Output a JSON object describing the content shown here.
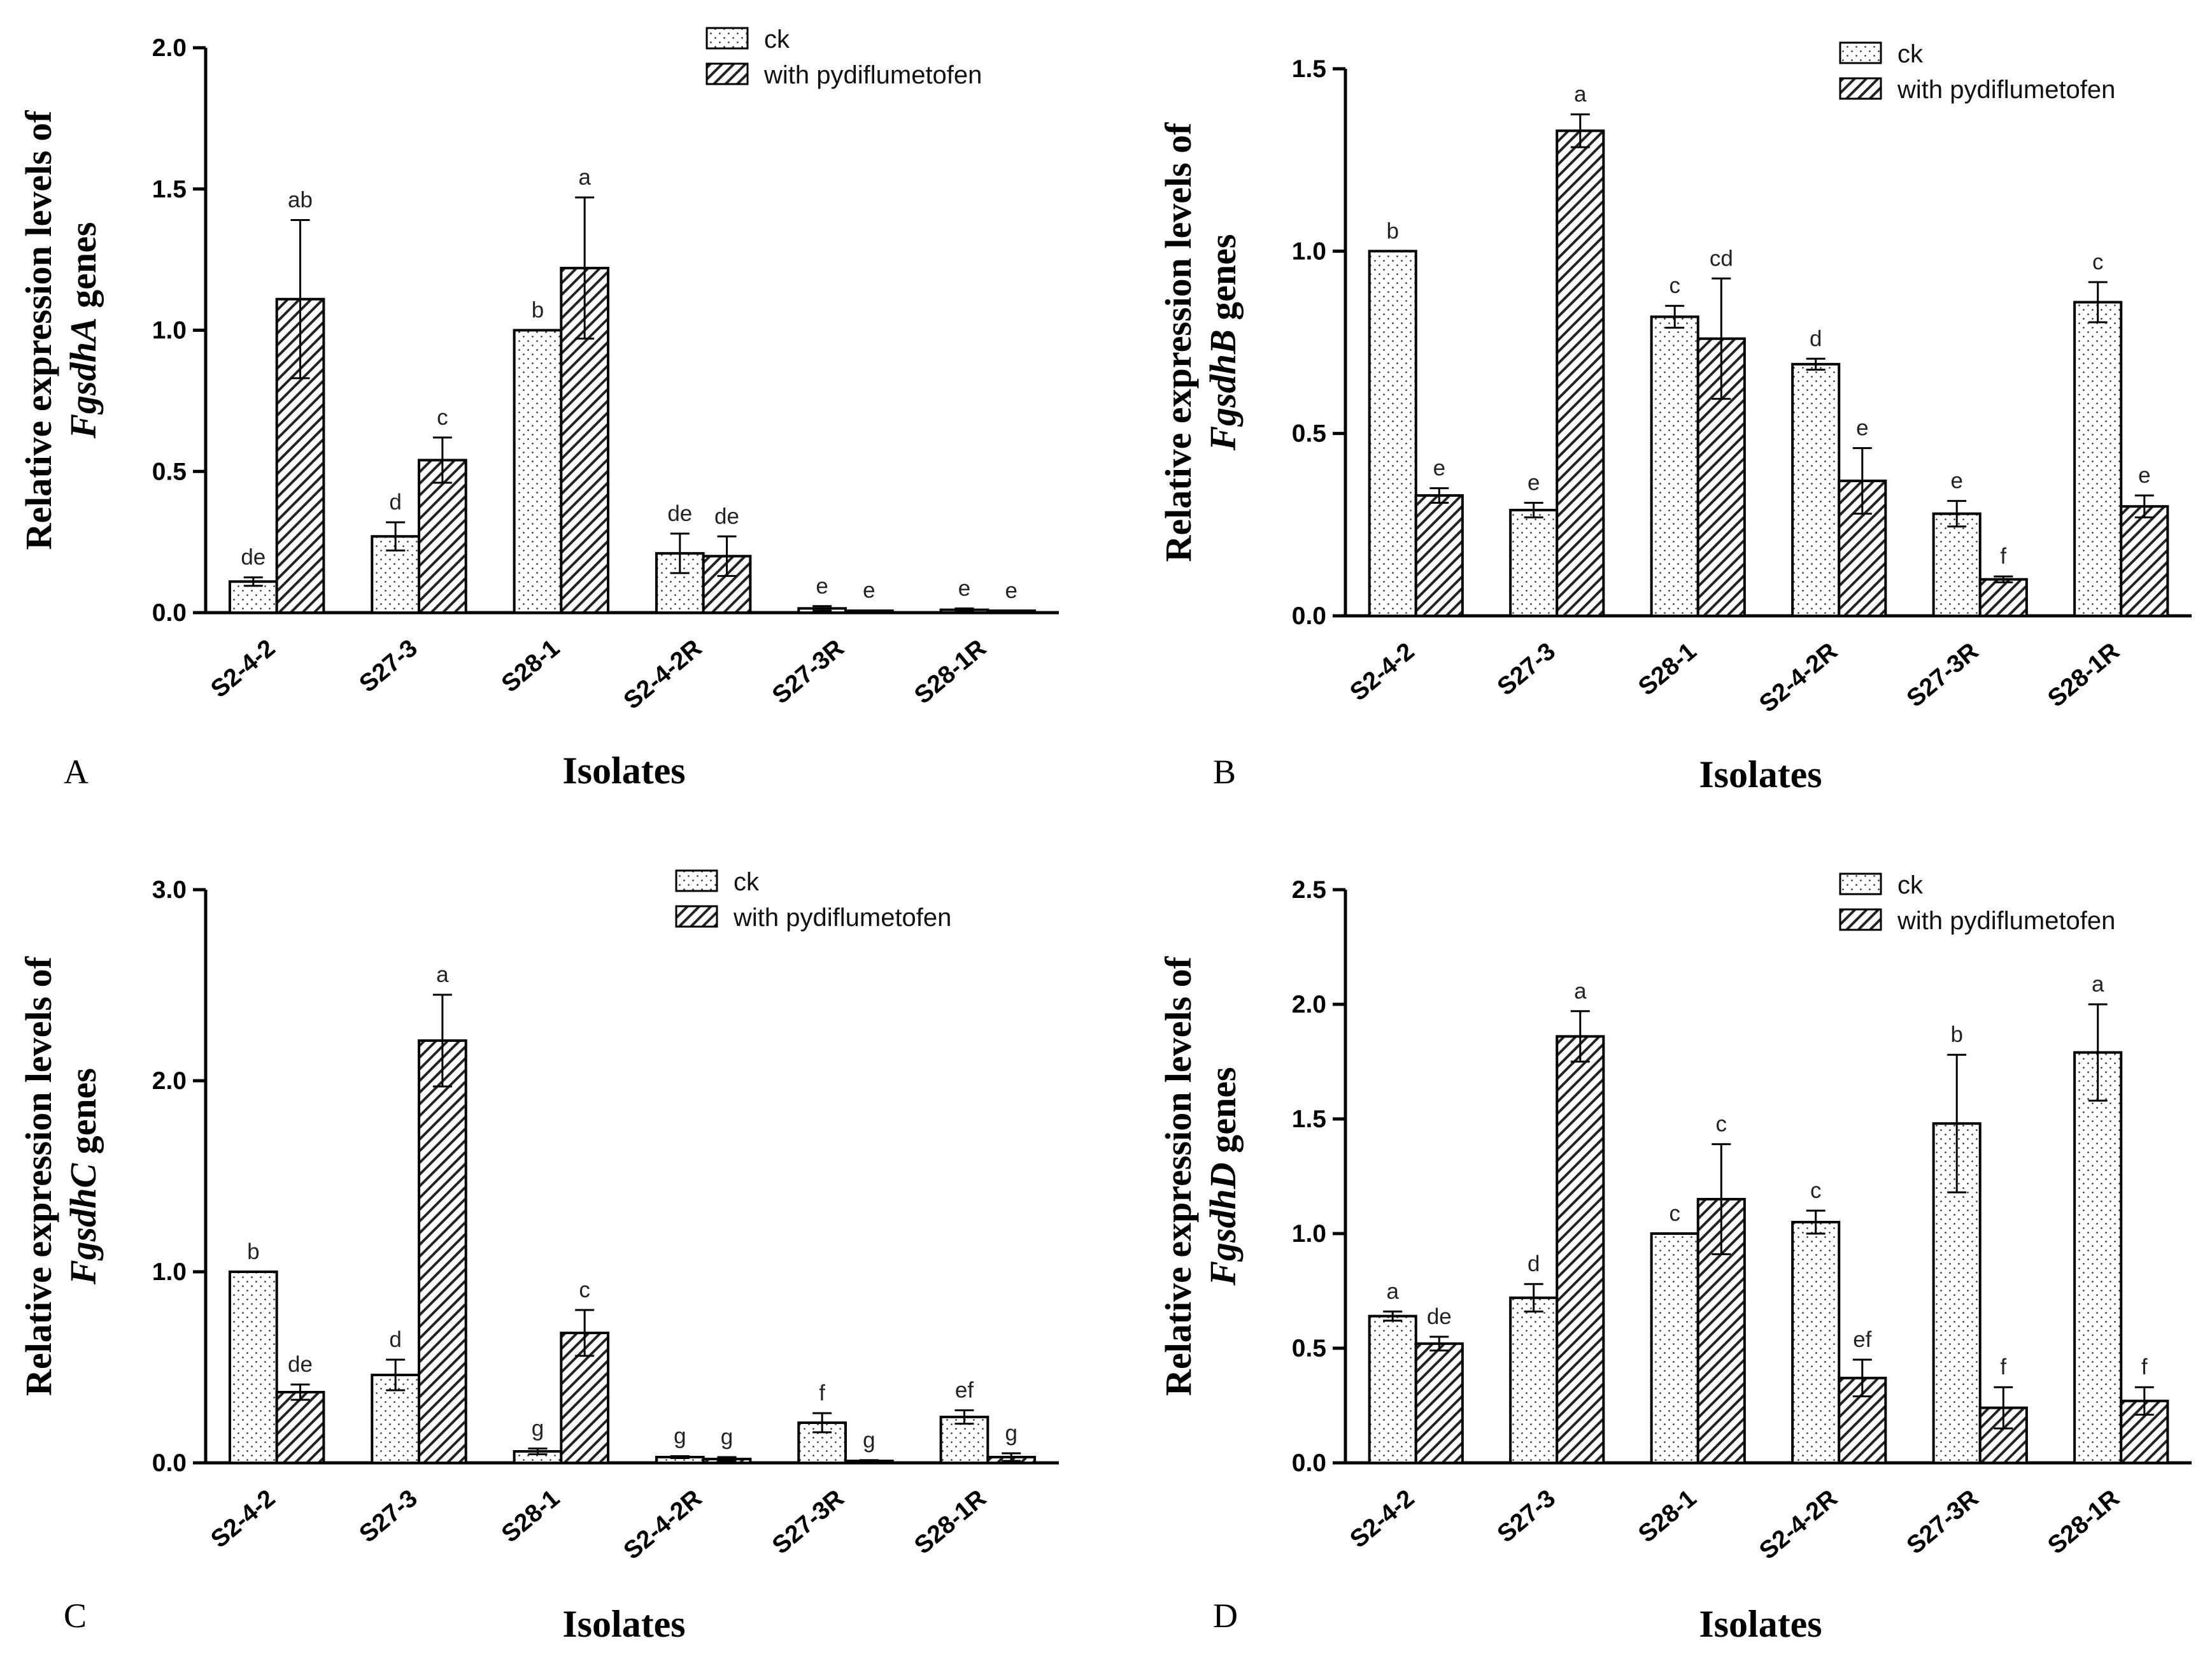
{
  "chart_data": [
    {
      "type": "bar",
      "panel_label": "A",
      "ylabel_prefix": "Relative expression levels of",
      "ylabel_gene": "FgsdhA",
      "ylabel_suffix": " genes",
      "xlabel": "Isolates",
      "ylim": [
        0,
        2.0
      ],
      "yticks": [
        "0.0",
        "0.5",
        "1.0",
        "1.5",
        "2.0"
      ],
      "categories": [
        "S2-4-2",
        "S27-3",
        "S28-1",
        "S2-4-2R",
        "S27-3R",
        "S28-1R"
      ],
      "legend": [
        "ck",
        "with pydiflumetofen"
      ],
      "series": [
        {
          "name": "ck",
          "values": [
            0.11,
            0.27,
            1.0,
            0.21,
            0.015,
            0.01
          ],
          "errors": [
            0.015,
            0.05,
            0.0,
            0.07,
            0.008,
            0.005
          ],
          "labels": [
            "de",
            "d",
            "b",
            "de",
            "e",
            "e"
          ]
        },
        {
          "name": "with pydiflumetofen",
          "values": [
            1.11,
            0.54,
            1.22,
            0.2,
            0.005,
            0.004
          ],
          "errors": [
            0.28,
            0.08,
            0.25,
            0.07,
            0.003,
            0.003
          ],
          "labels": [
            "ab",
            "c",
            "a",
            "de",
            "e",
            "e"
          ]
        }
      ]
    },
    {
      "type": "bar",
      "panel_label": "B",
      "ylabel_prefix": "Relative expression levels of",
      "ylabel_gene": "FgsdhB",
      "ylabel_suffix": " genes",
      "xlabel": "Isolates",
      "ylim": [
        0,
        1.5
      ],
      "yticks": [
        "0.0",
        "0.5",
        "1.0",
        "1.5"
      ],
      "categories": [
        "S2-4-2",
        "S27-3",
        "S28-1",
        "S2-4-2R",
        "S27-3R",
        "S28-1R"
      ],
      "legend": [
        "ck",
        "with pydiflumetofen"
      ],
      "series": [
        {
          "name": "ck",
          "values": [
            1.0,
            0.29,
            0.82,
            0.69,
            0.28,
            0.86
          ],
          "errors": [
            0.0,
            0.02,
            0.03,
            0.015,
            0.035,
            0.055
          ],
          "labels": [
            "b",
            "e",
            "c",
            "d",
            "e",
            "c"
          ]
        },
        {
          "name": "with pydiflumetofen",
          "values": [
            0.33,
            1.33,
            0.76,
            0.37,
            0.1,
            0.3
          ],
          "errors": [
            0.02,
            0.045,
            0.165,
            0.09,
            0.008,
            0.03
          ],
          "labels": [
            "e",
            "a",
            "cd",
            "e",
            "f",
            "e"
          ]
        }
      ]
    },
    {
      "type": "bar",
      "panel_label": "C",
      "ylabel_prefix": "Relative expression levels of",
      "ylabel_gene": "FgsdhC",
      "ylabel_suffix": " genes",
      "xlabel": "Isolates",
      "ylim": [
        0,
        3.0
      ],
      "yticks": [
        "0.0",
        "1.0",
        "2.0",
        "3.0"
      ],
      "categories": [
        "S2-4-2",
        "S27-3",
        "S28-1",
        "S2-4-2R",
        "S27-3R",
        "S28-1R"
      ],
      "legend": [
        "ck",
        "with  pydiflumetofen"
      ],
      "series": [
        {
          "name": "ck",
          "values": [
            1.0,
            0.46,
            0.06,
            0.03,
            0.21,
            0.24
          ],
          "errors": [
            0.0,
            0.08,
            0.015,
            0.005,
            0.05,
            0.035
          ],
          "labels": [
            "b",
            "d",
            "g",
            "g",
            "f",
            "ef"
          ]
        },
        {
          "name": "with  pydiflumetofen",
          "values": [
            0.37,
            2.21,
            0.68,
            0.02,
            0.01,
            0.03
          ],
          "errors": [
            0.04,
            0.24,
            0.12,
            0.01,
            0.004,
            0.02
          ],
          "labels": [
            "de",
            "a",
            "c",
            "g",
            "g",
            "g"
          ]
        }
      ]
    },
    {
      "type": "bar",
      "panel_label": "D",
      "ylabel_prefix": "Relative expression levels of",
      "ylabel_gene": "FgsdhD",
      "ylabel_suffix": " genes",
      "xlabel": "Isolates",
      "ylim": [
        0,
        2.5
      ],
      "yticks": [
        "0.0",
        "0.5",
        "1.0",
        "1.5",
        "2.0",
        "2.5"
      ],
      "categories": [
        "S2-4-2",
        "S27-3",
        "S28-1",
        "S2-4-2R",
        "S27-3R",
        "S28-1R"
      ],
      "legend": [
        "ck",
        "with pydiflumetofen"
      ],
      "series": [
        {
          "name": "ck",
          "values": [
            0.64,
            0.72,
            1.0,
            1.05,
            1.48,
            1.79
          ],
          "errors": [
            0.02,
            0.06,
            0.0,
            0.05,
            0.3,
            0.21
          ],
          "labels": [
            "a",
            "d",
            "c",
            "c",
            "b",
            "a"
          ]
        },
        {
          "name": "with pydiflumetofen",
          "values": [
            0.52,
            1.86,
            1.15,
            0.37,
            0.24,
            0.27
          ],
          "errors": [
            0.03,
            0.11,
            0.24,
            0.08,
            0.09,
            0.06
          ],
          "labels": [
            "de",
            "a",
            "c",
            "ef",
            "f",
            "f"
          ]
        }
      ]
    }
  ]
}
